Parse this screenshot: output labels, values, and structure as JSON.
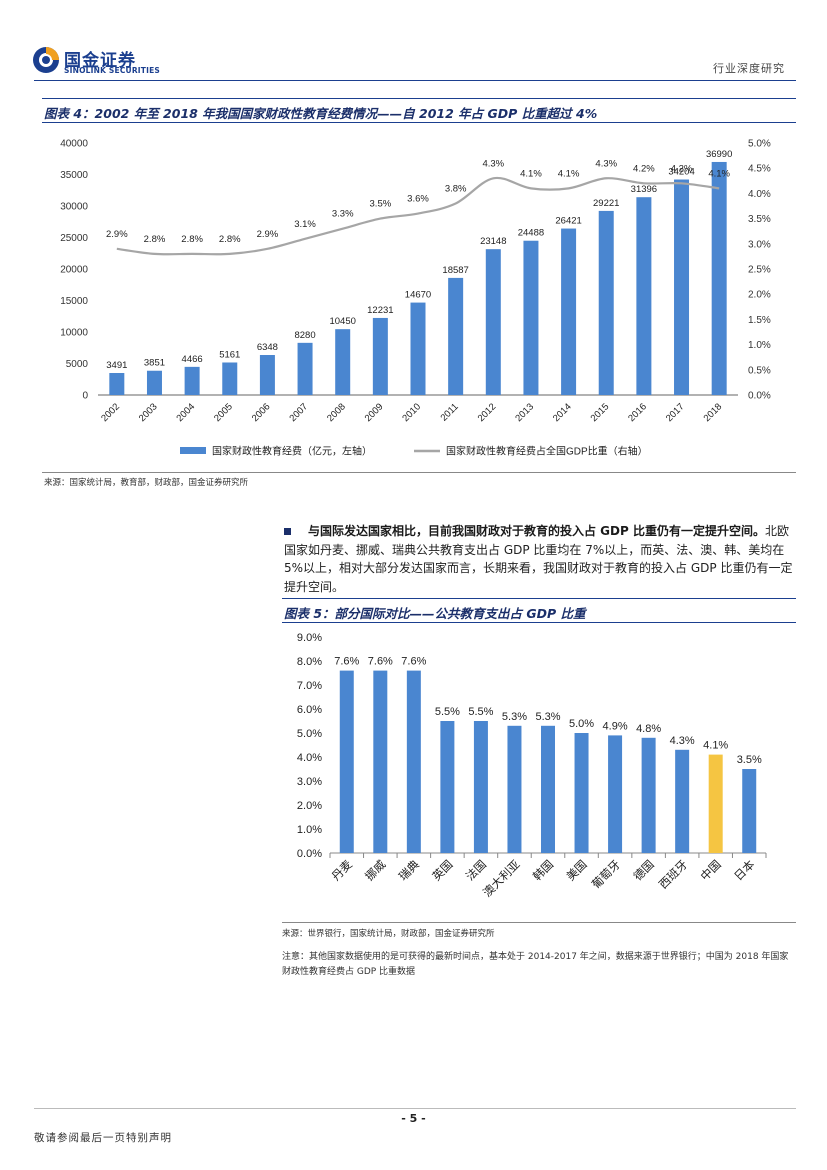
{
  "header": {
    "logo_cn": "国金证券",
    "logo_en": "SINOLINK SECURITIES",
    "report_type": "行业深度研究"
  },
  "figure4": {
    "title": "图表 4：2002 年至 2018 年我国国家财政性教育经费情况——自 2012 年占 GDP 比重超过 4%",
    "source": "来源：国家统计局，教育部，财政部，国金证券研究所"
  },
  "paragraph": {
    "bold": "与国际发达国家相比，目前我国财政对于教育的投入占 GDP 比重仍有一定提升空间。",
    "text": "北欧国家如丹麦、挪威、瑞典公共教育支出占 GDP 比重均在 7%以上，而英、法、澳、韩、美均在 5%以上，相对大部分发达国家而言，长期来看，我国财政对于教育的投入占 GDP 比重仍有一定提升空间。"
  },
  "figure5": {
    "title": "图表 5：部分国际对比——公共教育支出占 GDP 比重",
    "source": "来源：世界银行，国家统计局，财政部，国金证券研究所",
    "note": "注意：其他国家数据使用的是可获得的最新时间点，基本处于 2014-2017 年之间，数据来源于世界银行；中国为 2018 年国家财政性教育经费占 GDP 比重数据"
  },
  "footer": {
    "page_number": "- 5 -",
    "disclaimer": "敬请参阅最后一页特别声明"
  },
  "colors": {
    "bar_blue": "#4a86d0",
    "line_gray": "#a6a6a6",
    "highlight_yellow": "#f5c542",
    "brand_navy": "#1b3f8f"
  },
  "chart_data": [
    {
      "type": "bar",
      "categories": [
        "2002",
        "2003",
        "2004",
        "2005",
        "2006",
        "2007",
        "2008",
        "2009",
        "2010",
        "2011",
        "2012",
        "2013",
        "2014",
        "2015",
        "2016",
        "2017",
        "2018"
      ],
      "series": [
        {
          "name": "国家财政性教育经费（亿元，左轴）",
          "type": "bar",
          "axis": "left",
          "values": [
            3491,
            3851,
            4466,
            5161,
            6348,
            8280,
            10450,
            12231,
            14670,
            18587,
            23148,
            24488,
            26421,
            29221,
            31396,
            34204,
            36990
          ]
        },
        {
          "name": "国家财政性教育经费占全国GDP比重（右轴）",
          "type": "line",
          "axis": "right",
          "values": [
            2.9,
            2.8,
            2.8,
            2.8,
            2.9,
            3.1,
            3.3,
            3.5,
            3.6,
            3.8,
            4.3,
            4.1,
            4.1,
            4.3,
            4.2,
            4.2,
            4.1
          ]
        }
      ],
      "bar_labels": [
        "3491",
        "3851",
        "4466",
        "5161",
        "6348",
        "8280",
        "10450",
        "12231",
        "14670",
        "18587",
        "23148",
        "24488",
        "26421",
        "29221",
        "31396",
        "34204",
        "36990"
      ],
      "line_labels": [
        "2.9%",
        "2.8%",
        "2.8%",
        "2.8%",
        "2.9%",
        "3.1%",
        "3.3%",
        "3.5%",
        "3.6%",
        "3.8%",
        "4.3%",
        "4.1%",
        "4.1%",
        "4.3%",
        "4.2%",
        "4.2%",
        "4.1%"
      ],
      "ylim_left": [
        0,
        40000
      ],
      "yticks_left": [
        "0",
        "5000",
        "10000",
        "15000",
        "20000",
        "25000",
        "30000",
        "35000",
        "40000"
      ],
      "ylim_right": [
        0,
        5.0
      ],
      "yticks_right": [
        "0.0%",
        "0.5%",
        "1.0%",
        "1.5%",
        "2.0%",
        "2.5%",
        "3.0%",
        "3.5%",
        "4.0%",
        "4.5%",
        "5.0%"
      ],
      "legend": [
        "国家财政性教育经费（亿元，左轴）",
        "国家财政性教育经费占全国GDP比重（右轴）"
      ],
      "legend_position": "bottom"
    },
    {
      "type": "bar",
      "categories": [
        "丹麦",
        "挪威",
        "瑞典",
        "英国",
        "法国",
        "澳大利亚",
        "韩国",
        "美国",
        "葡萄牙",
        "德国",
        "西班牙",
        "中国",
        "日本"
      ],
      "values": [
        7.6,
        7.6,
        7.6,
        5.5,
        5.5,
        5.3,
        5.3,
        5.0,
        4.9,
        4.8,
        4.3,
        4.1,
        3.5
      ],
      "value_labels": [
        "7.6%",
        "7.6%",
        "7.6%",
        "5.5%",
        "5.5%",
        "5.3%",
        "5.3%",
        "5.0%",
        "4.9%",
        "4.8%",
        "4.3%",
        "4.1%",
        "3.5%"
      ],
      "highlight": "中国",
      "ylim": [
        0,
        9.0
      ],
      "yticks": [
        "0.0%",
        "1.0%",
        "2.0%",
        "3.0%",
        "4.0%",
        "5.0%",
        "6.0%",
        "7.0%",
        "8.0%",
        "9.0%"
      ]
    }
  ]
}
